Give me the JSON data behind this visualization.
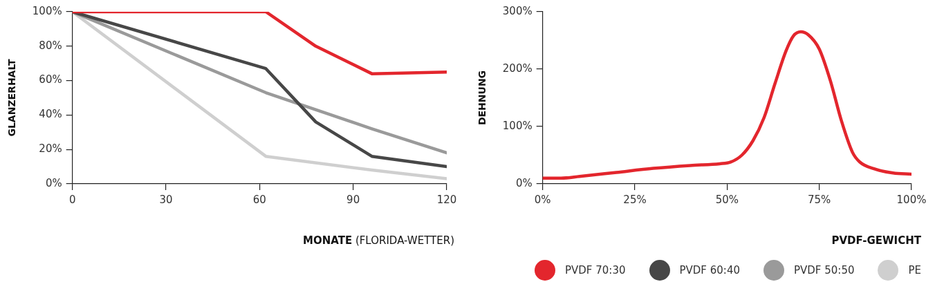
{
  "chart_data": [
    {
      "type": "line",
      "xlabel": "MONATE (FLORIDA-WETTER)",
      "ylabel": "GLANZERHALT",
      "xlim": [
        0,
        120
      ],
      "xticks": [
        0,
        30,
        60,
        90,
        120
      ],
      "ylim": [
        0,
        100
      ],
      "yticks": [
        {
          "value": 0,
          "label": "0%"
        },
        {
          "value": 20,
          "label": "20%"
        },
        {
          "value": 40,
          "label": "40%"
        },
        {
          "value": 60,
          "label": "60%"
        },
        {
          "value": 80,
          "label": "80%"
        },
        {
          "value": 100,
          "label": "100%"
        }
      ],
      "grid": false,
      "legend": "bottom right",
      "marker": "none",
      "line_style": "solid",
      "series": [
        {
          "name": "PVDF 70:30",
          "color": "#e3262d",
          "x": [
            0,
            62,
            78,
            96,
            120
          ],
          "values": [
            100,
            100,
            80,
            64,
            65
          ]
        },
        {
          "name": "PVDF 60:40",
          "color": "#474747",
          "x": [
            0,
            62,
            78,
            96,
            120
          ],
          "values": [
            100,
            67,
            36,
            16,
            10
          ]
        },
        {
          "name": "PVDF 50:50",
          "color": "#9a9a9a",
          "x": [
            0,
            62,
            96,
            120
          ],
          "values": [
            100,
            53,
            32,
            18
          ]
        },
        {
          "name": "PE",
          "color": "#cfcfcf",
          "x": [
            0,
            62,
            96,
            120
          ],
          "values": [
            100,
            16,
            8,
            3
          ]
        }
      ]
    },
    {
      "type": "line",
      "xlabel": "PVDF-GEWICHT",
      "ylabel": "DEHNUNG",
      "xlim": [
        0,
        100
      ],
      "xticks": [
        {
          "value": 0,
          "label": "0%"
        },
        {
          "value": 25,
          "label": "25%"
        },
        {
          "value": 50,
          "label": "50%"
        },
        {
          "value": 75,
          "label": "75%"
        },
        {
          "value": 100,
          "label": "100%"
        }
      ],
      "ylim": [
        0,
        300
      ],
      "yticks": [
        {
          "value": 0,
          "label": "0%"
        },
        {
          "value": 100,
          "label": "100%"
        },
        {
          "value": 200,
          "label": "200%"
        },
        {
          "value": 300,
          "label": "300%"
        }
      ],
      "grid": false,
      "marker": "none",
      "line_style": "solid",
      "series": [
        {
          "color": "#e3262d",
          "x": [
            0,
            5,
            10,
            20,
            30,
            40,
            48,
            51,
            54,
            57,
            60,
            63,
            66,
            68,
            70,
            72,
            75,
            78,
            81,
            84,
            86,
            90,
            95,
            100
          ],
          "values": [
            10,
            10,
            13,
            20,
            27,
            32,
            35,
            38,
            50,
            75,
            115,
            175,
            232,
            258,
            265,
            260,
            235,
            180,
            110,
            55,
            38,
            26,
            19,
            17
          ]
        }
      ]
    }
  ]
}
